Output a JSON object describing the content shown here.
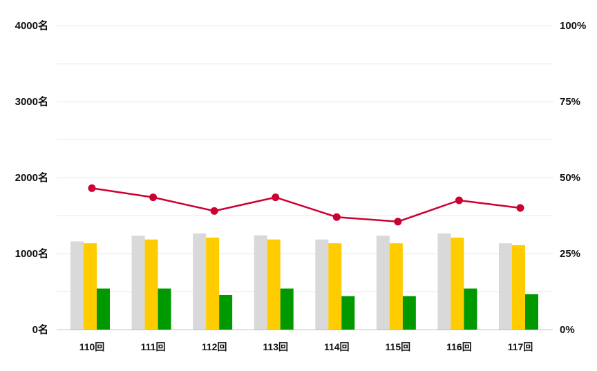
{
  "chart_data": {
    "type": "bar",
    "categories": [
      "110回",
      "111回",
      "112回",
      "113回",
      "114回",
      "115回",
      "116回",
      "117回"
    ],
    "series": [
      {
        "kind": "bar",
        "axis": "left",
        "color": "#d9d9d9",
        "values": [
          1160,
          1235,
          1265,
          1240,
          1185,
          1235,
          1265,
          1135
        ]
      },
      {
        "kind": "bar",
        "axis": "left",
        "color": "#ffcc00",
        "values": [
          1135,
          1185,
          1210,
          1185,
          1135,
          1135,
          1210,
          1110
        ]
      },
      {
        "kind": "bar",
        "axis": "left",
        "color": "#009900",
        "values": [
          540,
          540,
          455,
          540,
          440,
          440,
          540,
          465
        ]
      },
      {
        "kind": "line",
        "axis": "right",
        "color": "#cc0033",
        "values": [
          46.5,
          43.5,
          39.0,
          43.5,
          37.0,
          35.5,
          42.5,
          40.0
        ]
      }
    ],
    "y_left": {
      "min": 0,
      "max": 4000,
      "ticks": [
        {
          "value": 0,
          "label": "0名"
        },
        {
          "value": 1000,
          "label": "1000名"
        },
        {
          "value": 2000,
          "label": "2000名"
        },
        {
          "value": 3000,
          "label": "3000名"
        },
        {
          "value": 4000,
          "label": "4000名"
        }
      ]
    },
    "y_right": {
      "min": 0,
      "max": 100,
      "ticks": [
        {
          "value": 0,
          "label": "0%"
        },
        {
          "value": 25,
          "label": "25%"
        },
        {
          "value": 50,
          "label": "50%"
        },
        {
          "value": 75,
          "label": "75%"
        },
        {
          "value": 100,
          "label": "100%"
        }
      ]
    },
    "gridlines_left_values": [
      500,
      1000,
      1500,
      2000,
      2500,
      3000,
      3500,
      4000
    ],
    "grid": true,
    "legend": "none"
  }
}
